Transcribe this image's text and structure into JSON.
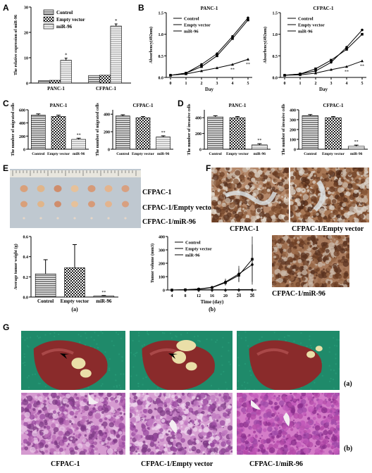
{
  "panel_letters": {
    "A": "A",
    "B": "B",
    "C": "C",
    "D": "D",
    "E": "E",
    "F": "F",
    "G": "G"
  },
  "colors": {
    "stain_brown": "#8a5a3a",
    "stain_light": "#d9d2c8",
    "he_pink": "#c98cc6",
    "drape_green": "#1f8a6a",
    "liver": "#8a2b2b",
    "ruler_bg": "#cfd4d9"
  },
  "legend_groups": [
    "Control",
    "Empty vector",
    "miR-96"
  ],
  "chart_data": [
    {
      "type": "bar",
      "id": "A",
      "ylabel": "The relative expression of miR-96",
      "categories": [
        "PANC-1",
        "CFPAC-1"
      ],
      "series": [
        {
          "name": "Control",
          "values": [
            1.0,
            3.0
          ]
        },
        {
          "name": "Empty vector",
          "values": [
            1.1,
            3.1
          ]
        },
        {
          "name": "miR-96",
          "values": [
            9.0,
            22.5
          ]
        }
      ],
      "ylim": [
        0,
        30
      ],
      "yticks": [
        "0",
        "10",
        "20",
        "30"
      ],
      "annotations": [
        "*",
        "*"
      ]
    },
    {
      "type": "line",
      "id": "B1",
      "title": "PANC-1",
      "xlabel": "Day",
      "ylabel": "Absorbency(492nm)",
      "x": [
        "0",
        "1",
        "2",
        "3",
        "4",
        "5"
      ],
      "series": [
        {
          "name": "Control",
          "values": [
            0.05,
            0.1,
            0.3,
            0.55,
            0.95,
            1.38
          ]
        },
        {
          "name": "Empty vector",
          "values": [
            0.05,
            0.1,
            0.25,
            0.5,
            0.9,
            1.33
          ]
        },
        {
          "name": "miR-96",
          "values": [
            0.05,
            0.08,
            0.15,
            0.22,
            0.3,
            0.42
          ]
        }
      ],
      "ylim": [
        0,
        1.5
      ],
      "yticks": [
        "0.0",
        "0.5",
        "1.0",
        "1.5"
      ],
      "annotations": [
        "**",
        "**"
      ]
    },
    {
      "type": "line",
      "id": "B2",
      "title": "CFPAC-1",
      "xlabel": "Day",
      "ylabel": "Absorbency(492nm)",
      "x": [
        "0",
        "1",
        "2",
        "3",
        "4",
        "5"
      ],
      "series": [
        {
          "name": "Control",
          "values": [
            0.05,
            0.08,
            0.15,
            0.35,
            0.7,
            1.1
          ]
        },
        {
          "name": "Empty vector",
          "values": [
            0.05,
            0.08,
            0.2,
            0.4,
            0.65,
            1.0
          ]
        },
        {
          "name": "miR-96",
          "values": [
            0.05,
            0.06,
            0.1,
            0.18,
            0.25,
            0.38
          ]
        }
      ],
      "ylim": [
        0,
        1.5
      ],
      "yticks": [
        "0.0",
        "0.5",
        "1.0",
        "1.5"
      ],
      "annotations": [
        "**",
        "**"
      ]
    },
    {
      "type": "bar",
      "id": "C1",
      "title": "PANC-1",
      "ylabel": "The number of migrated cells",
      "categories": [
        "Control",
        "Empty vector",
        "miR-96"
      ],
      "values": [
        520,
        500,
        150
      ],
      "ylim": [
        0,
        600
      ],
      "yticks": [
        "0",
        "200",
        "400",
        "600"
      ],
      "annotations": [
        "**"
      ]
    },
    {
      "type": "bar",
      "id": "C2",
      "title": "CFPAC-1",
      "ylabel": "The number of migrated cells",
      "categories": [
        "Control",
        "Empty vector",
        "miR-96"
      ],
      "values": [
        380,
        360,
        140
      ],
      "ylim": [
        0,
        450
      ],
      "yticks": [
        "0",
        "200",
        "400"
      ],
      "annotations": [
        "**"
      ]
    },
    {
      "type": "bar",
      "id": "D1",
      "title": "PANC-1",
      "ylabel": "The number of invasive cells",
      "categories": [
        "Control",
        "Empty vector",
        "miR-96"
      ],
      "values": [
        410,
        400,
        55
      ],
      "ylim": [
        0,
        500
      ],
      "yticks": [
        "0",
        "200",
        "400"
      ],
      "annotations": [
        "**"
      ]
    },
    {
      "type": "bar",
      "id": "D2",
      "title": "CFPAC-1",
      "ylabel": "The number of invasive cells",
      "categories": [
        "Control",
        "Empty vector",
        "miR-96"
      ],
      "values": [
        340,
        320,
        30
      ],
      "ylim": [
        0,
        400
      ],
      "yticks": [
        "0",
        "100",
        "200",
        "300",
        "400"
      ],
      "annotations": [
        "**"
      ]
    },
    {
      "type": "bar",
      "id": "Ea",
      "ylabel": "Average tumor weight (g)",
      "categories": [
        "Control",
        "Empty vector",
        "miR-96"
      ],
      "values": [
        0.23,
        0.29,
        0.01
      ],
      "errors": [
        0.14,
        0.23,
        0.005
      ],
      "ylim": [
        0,
        0.6
      ],
      "yticks": [
        "0.0",
        "0.2",
        "0.4",
        "0.6"
      ],
      "annotations": [
        "**"
      ],
      "sublabel": "(a)"
    },
    {
      "type": "line",
      "id": "Eb",
      "xlabel": "Time (day)",
      "ylabel": "Tumor volume (mm3)",
      "x": [
        "4",
        "8",
        "12",
        "16",
        "20",
        "24",
        "26"
      ],
      "series": [
        {
          "name": "Control",
          "values": [
            0,
            2,
            8,
            20,
            60,
            120,
            190
          ]
        },
        {
          "name": "Empty vector",
          "values": [
            0,
            2,
            6,
            18,
            55,
            110,
            230
          ]
        },
        {
          "name": "miR-96",
          "values": [
            0,
            1,
            1,
            2,
            2,
            3,
            3
          ]
        }
      ],
      "ylim": [
        0,
        400
      ],
      "yticks": [
        "0",
        "100",
        "200",
        "300",
        "400"
      ],
      "annotations": [
        "**",
        "**"
      ],
      "sublabel": "(b)"
    }
  ],
  "E_photo_labels": [
    "CFPAC-1",
    "CFPAC-1/Empty vector",
    "CFPAC-1/miR-96"
  ],
  "F_captions": [
    "CFPAC-1",
    "CFPAC-1/Empty vector",
    "CFPAC-1/miR-96"
  ],
  "G_row_labels": [
    "(a)",
    "(b)"
  ],
  "G_captions": [
    "CFPAC-1",
    "CFPAC-1/Empty vector",
    "CFPAC-1/miR-96"
  ]
}
